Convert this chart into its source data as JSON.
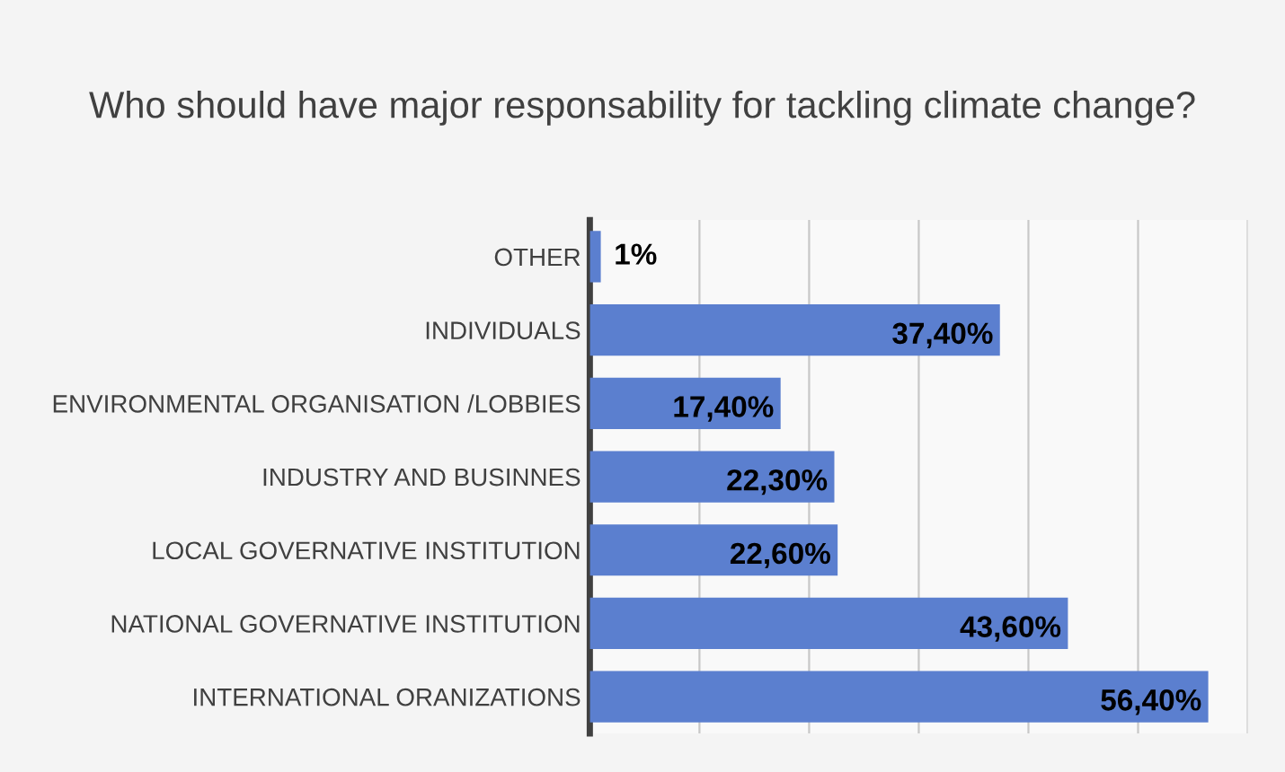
{
  "chart_data": {
    "type": "bar",
    "orientation": "horizontal",
    "title": "Who should have major responsability for tackling climate change?",
    "categories": [
      "OTHER",
      "INDIVIDUALS",
      "ENVIRONMENTAL ORGANISATION /LOBBIES",
      "INDUSTRY AND BUSINNES",
      "LOCAL GOVERNATIVE INSTITUTION",
      "NATIONAL GOVERNATIVE INSTITUTION",
      "INTERNATIONAL ORANIZATIONS"
    ],
    "values": [
      1,
      37.4,
      17.4,
      22.3,
      22.6,
      43.6,
      56.4
    ],
    "value_labels": [
      "1%",
      "37,40%",
      "17,40%",
      "22,30%",
      "22,60%",
      "43,60%",
      "56,40%"
    ],
    "color": "#5b7fcf",
    "xlim": [
      0,
      60
    ],
    "xticks": [
      {
        "value": 0,
        "label": null
      },
      {
        "value": 10,
        "label": null
      },
      {
        "value": 20,
        "label": null
      },
      {
        "value": 30,
        "label": null
      },
      {
        "value": 40,
        "label": null
      },
      {
        "value": 50,
        "label": null
      },
      {
        "value": 60,
        "label": null
      }
    ],
    "grid": "x",
    "tick_labels": "y"
  }
}
